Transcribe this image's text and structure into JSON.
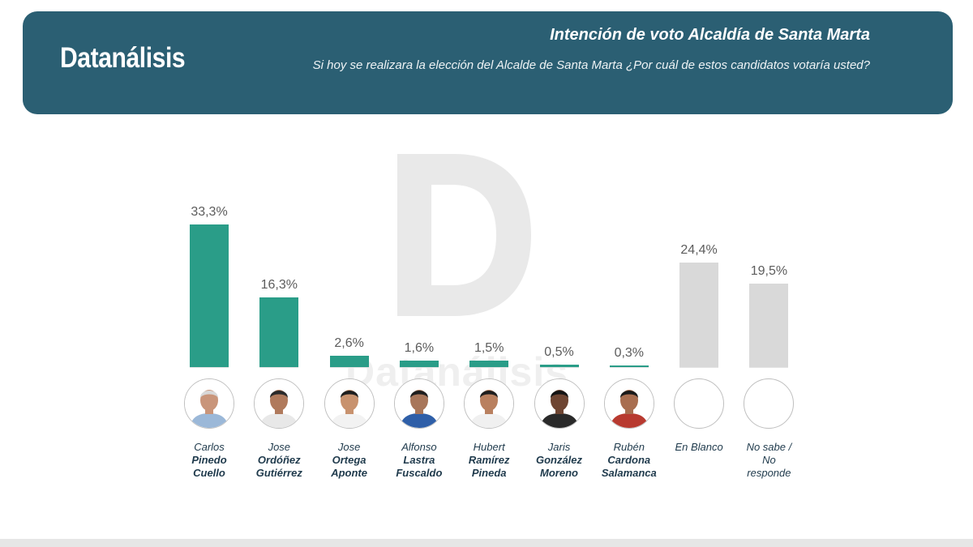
{
  "brand": "Datanálisis",
  "watermark_text": "Datanálisis",
  "title": "Intención de voto Alcaldía de Santa Marta",
  "subtitle": "Si hoy se realizara la elección del Alcalde de Santa Marta ¿Por cuál de estos candidatos votaría usted?",
  "colors": {
    "header": "#2b5f73",
    "candidate_bar": "#2a9d88",
    "other_bar": "#d9d9d9",
    "watermark": "#eaeaea"
  },
  "chart_data": {
    "type": "bar",
    "title": "Intención de voto Alcaldía de Santa Marta",
    "categories": [
      "Carlos Pinedo Cuello",
      "Jose Ordóñez Gutiérrez",
      "Jose Ortega Aponte",
      "Alfonso Lastra Fuscaldo",
      "Hubert Ramírez Pineda",
      "Jaris González Moreno",
      "Rubén Cardona Salamanca",
      "En Blanco",
      "No sabe / No responde"
    ],
    "values": [
      33.3,
      16.3,
      2.6,
      1.6,
      1.5,
      0.5,
      0.3,
      24.4,
      19.5
    ],
    "value_labels": [
      "33,3%",
      "16,3%",
      "2,6%",
      "1,6%",
      "1,5%",
      "0,5%",
      "0,3%",
      "24,4%",
      "19,5%"
    ],
    "bar_colors": [
      "#2a9d88",
      "#2a9d88",
      "#2a9d88",
      "#2a9d88",
      "#2a9d88",
      "#2a9d88",
      "#2a9d88",
      "#d9d9d9",
      "#d9d9d9"
    ],
    "unit": "%",
    "ylim": [
      0,
      33.3
    ],
    "grid": false
  },
  "candidates": [
    {
      "first": "Carlos",
      "last": "Pinedo Cuello",
      "photo": true,
      "skin": "#c9957a",
      "hair": "#d8d8d8",
      "shirt": "#9bb8d8"
    },
    {
      "first": "Jose",
      "last": "Ordóñez Gutiérrez",
      "photo": true,
      "skin": "#b07a5c",
      "hair": "#2a2a2a",
      "shirt": "#e8e8e8"
    },
    {
      "first": "Jose",
      "last": "Ortega Aponte",
      "photo": true,
      "skin": "#c8926e",
      "hair": "#1e1e1e",
      "shirt": "#f2f2f2"
    },
    {
      "first": "Alfonso",
      "last": "Lastra Fuscaldo",
      "photo": true,
      "skin": "#a8765a",
      "hair": "#1e1e1e",
      "shirt": "#2f5fa8"
    },
    {
      "first": "Hubert",
      "last": "Ramírez Pineda",
      "photo": true,
      "skin": "#b9805f",
      "hair": "#1e1e1e",
      "shirt": "#f0f0f0"
    },
    {
      "first": "Jaris",
      "last": "González Moreno",
      "photo": true,
      "skin": "#6e4532",
      "hair": "#141414",
      "shirt": "#2a2a2a"
    },
    {
      "first": "Rubén",
      "last": "Cardona Salamanca",
      "photo": true,
      "skin": "#a86e50",
      "hair": "#1a1a1a",
      "shirt": "#b83a30"
    },
    {
      "first": "En Blanco",
      "last": "",
      "photo": false
    },
    {
      "first": "No sabe /",
      "last": "",
      "extra": "No responde",
      "photo": false
    }
  ]
}
